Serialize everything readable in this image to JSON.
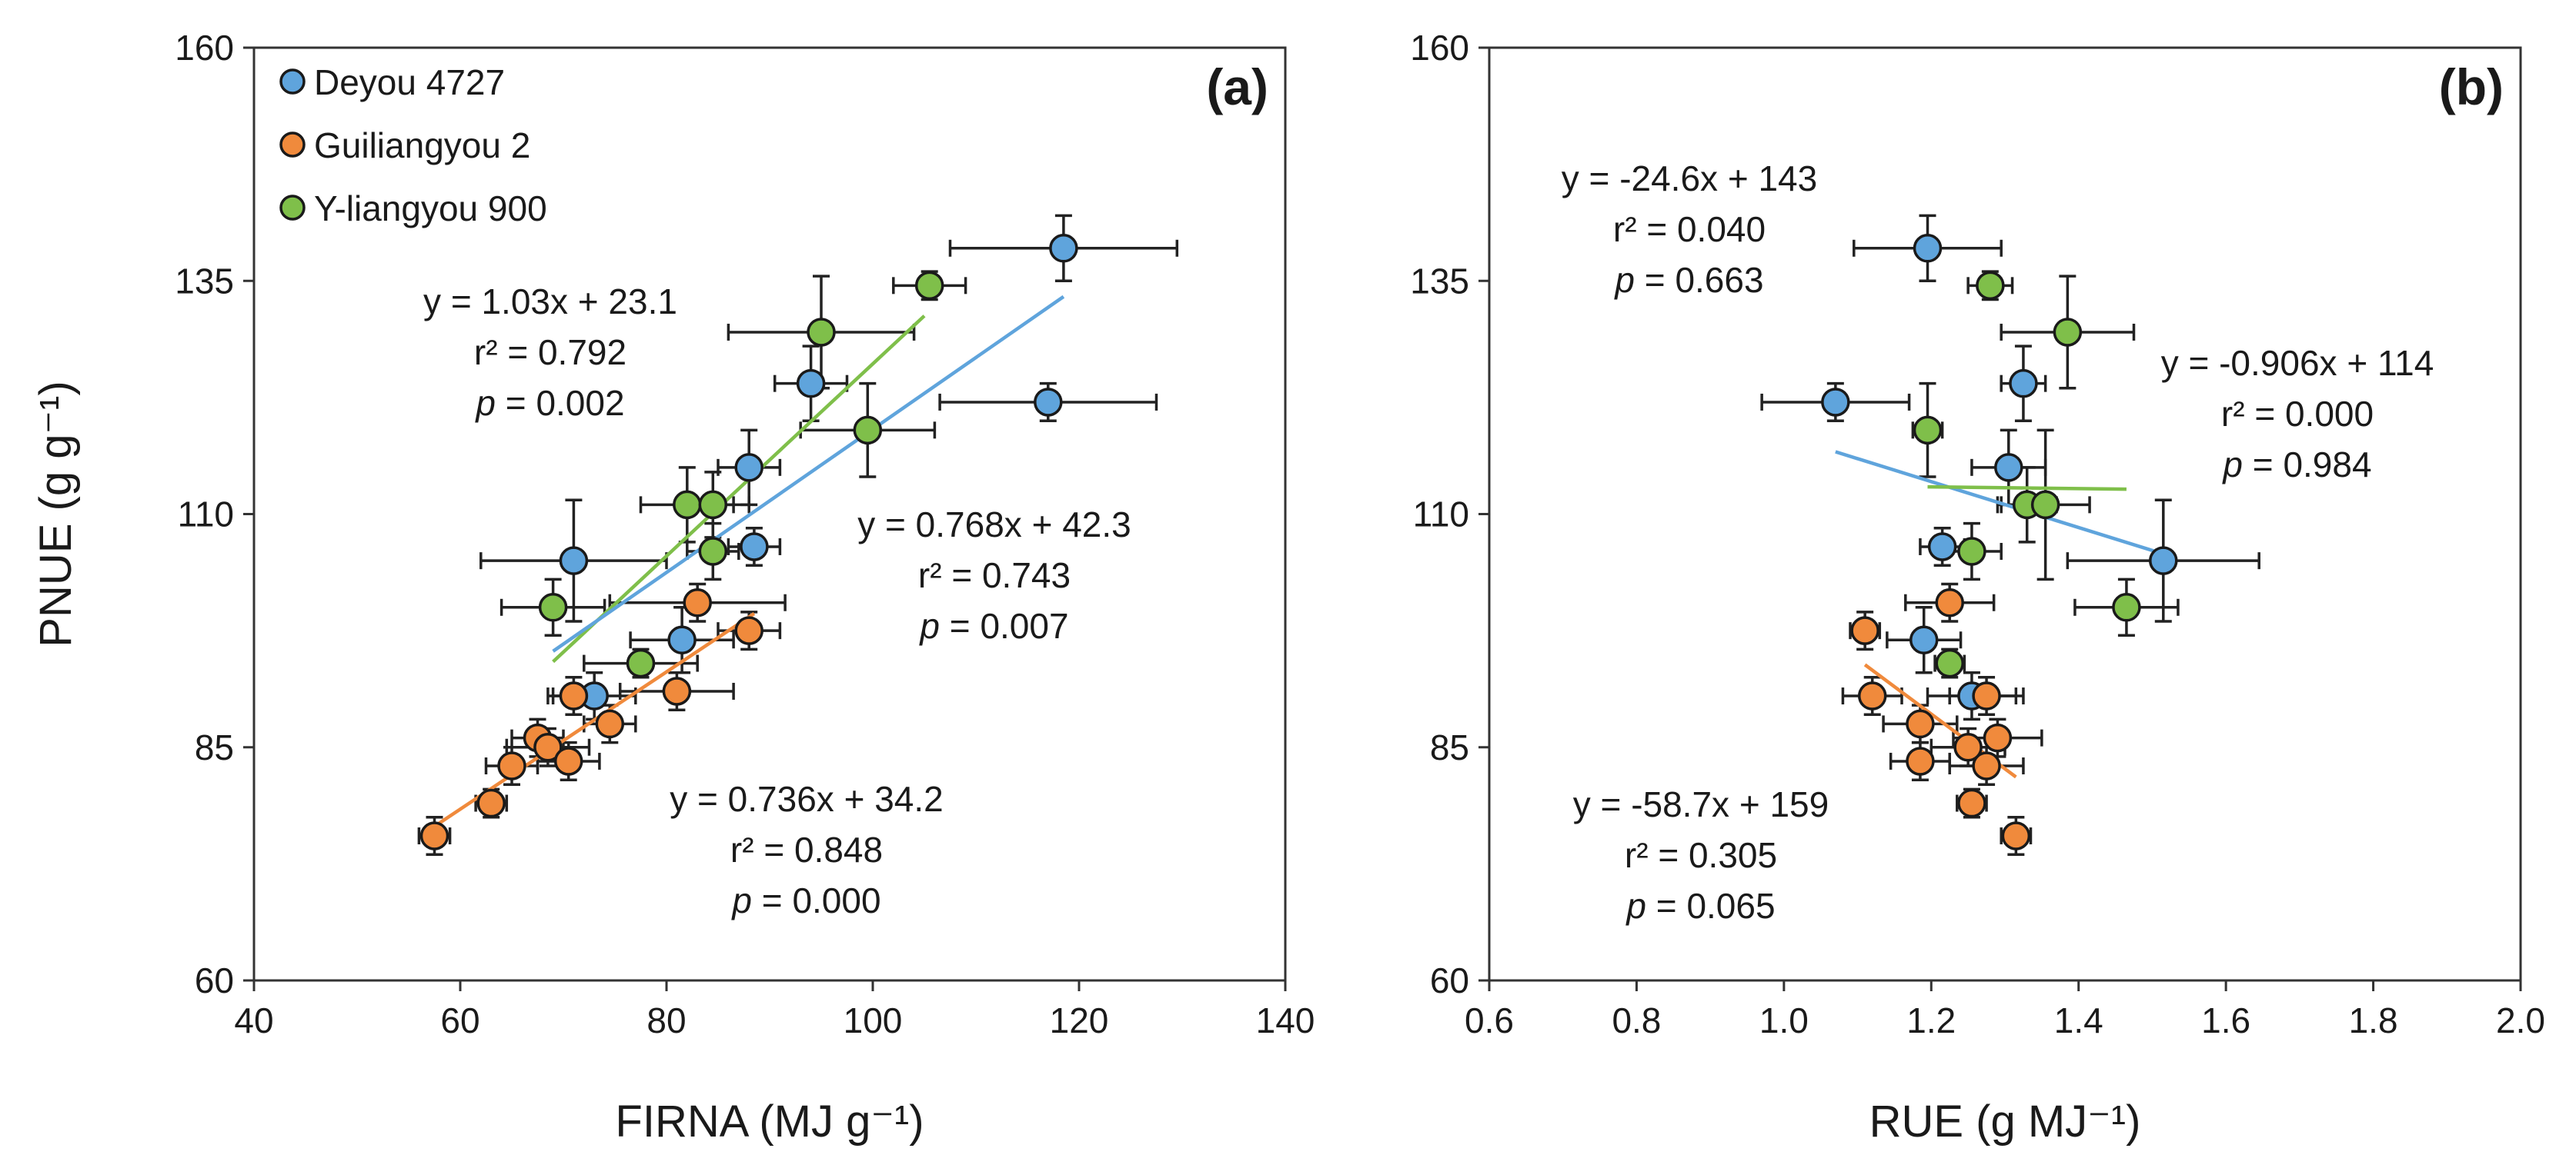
{
  "chart_data": [
    {
      "type": "scatter",
      "panel_label": "(a)",
      "xlabel": "FIRNA (MJ g⁻¹)",
      "ylabel": "PNUE (g g⁻¹)",
      "xlim": [
        40,
        140
      ],
      "ylim": [
        60,
        160
      ],
      "xticks": [
        "40",
        "60",
        "80",
        "100",
        "120",
        "140"
      ],
      "yticks": [
        "60",
        "85",
        "110",
        "135",
        "160"
      ],
      "legend": {
        "placement": "top-left",
        "entries": [
          "Deyou 4727",
          "Guiliangyou 2",
          "Y-liangyou 900"
        ]
      },
      "series": [
        {
          "name": "Deyou 4727",
          "color": "#5fa4dc",
          "points": [
            {
              "x": 118.5,
              "y": 138.5,
              "xerr": 11.0,
              "yerr": 3.5
            },
            {
              "x": 117.0,
              "y": 122.0,
              "xerr": 10.5,
              "yerr": 2.0
            },
            {
              "x": 94.0,
              "y": 124.0,
              "xerr": 3.5,
              "yerr": 4.0
            },
            {
              "x": 88.0,
              "y": 115.0,
              "xerr": 3.0,
              "yerr": 4.0
            },
            {
              "x": 71.0,
              "y": 105.0,
              "xerr": 9.0,
              "yerr": 6.5
            },
            {
              "x": 88.5,
              "y": 106.5,
              "xerr": 2.5,
              "yerr": 2.0
            },
            {
              "x": 81.5,
              "y": 96.5,
              "xerr": 5.0,
              "yerr": 3.5
            },
            {
              "x": 73.0,
              "y": 90.5,
              "xerr": 4.0,
              "yerr": 2.5
            }
          ],
          "fit": {
            "x": [
              69,
              118.5
            ]
          }
        },
        {
          "name": "Guiliangyou 2",
          "color": "#f08a3c",
          "points": [
            {
              "x": 57.5,
              "y": 75.5,
              "xerr": 1.5,
              "yerr": 2.0
            },
            {
              "x": 63.0,
              "y": 79.0,
              "xerr": 1.5,
              "yerr": 1.5
            },
            {
              "x": 65.0,
              "y": 83.0,
              "xerr": 2.5,
              "yerr": 2.0
            },
            {
              "x": 67.5,
              "y": 86.0,
              "xerr": 2.5,
              "yerr": 2.0
            },
            {
              "x": 68.5,
              "y": 85.0,
              "xerr": 4.0,
              "yerr": 2.0
            },
            {
              "x": 70.5,
              "y": 83.5,
              "xerr": 3.0,
              "yerr": 2.0
            },
            {
              "x": 71.0,
              "y": 90.5,
              "xerr": 2.5,
              "yerr": 2.0
            },
            {
              "x": 74.5,
              "y": 87.5,
              "xerr": 2.5,
              "yerr": 2.0
            },
            {
              "x": 81.0,
              "y": 91.0,
              "xerr": 5.5,
              "yerr": 2.0
            },
            {
              "x": 83.0,
              "y": 100.5,
              "xerr": 8.5,
              "yerr": 2.0
            },
            {
              "x": 88.0,
              "y": 97.5,
              "xerr": 3.0,
              "yerr": 2.0
            }
          ],
          "fit": {
            "x": [
              57.5,
              88.5
            ]
          }
        },
        {
          "name": "Y-liangyou 900",
          "color": "#7fbf4a",
          "points": [
            {
              "x": 105.5,
              "y": 134.5,
              "xerr": 3.5,
              "yerr": 1.5
            },
            {
              "x": 95.0,
              "y": 129.5,
              "xerr": 9.0,
              "yerr": 6.0
            },
            {
              "x": 99.5,
              "y": 119.0,
              "xerr": 6.5,
              "yerr": 5.0
            },
            {
              "x": 82.0,
              "y": 111.0,
              "xerr": 4.5,
              "yerr": 4.0
            },
            {
              "x": 84.5,
              "y": 111.0,
              "xerr": 3.5,
              "yerr": 3.5
            },
            {
              "x": 84.5,
              "y": 106.0,
              "xerr": 2.5,
              "yerr": 3.0
            },
            {
              "x": 69.0,
              "y": 100.0,
              "xerr": 5.0,
              "yerr": 3.0
            },
            {
              "x": 77.5,
              "y": 94.0,
              "xerr": 5.5,
              "yerr": 1.5
            }
          ],
          "fit": {
            "x": [
              69,
              105
            ]
          }
        }
      ],
      "annotations": [
        {
          "series": "Y-liangyou 900",
          "eq": "y = 1.03x + 23.1",
          "r2": "r² = 0.792",
          "p_label": "p",
          "p_value": " = 0.002",
          "slope": 1.03,
          "intercept": 23.1
        },
        {
          "series": "Deyou 4727",
          "eq": "y = 0.768x + 42.3",
          "r2": "r² = 0.743",
          "p_label": "p",
          "p_value": " = 0.007",
          "slope": 0.768,
          "intercept": 42.3
        },
        {
          "series": "Guiliangyou 2",
          "eq": "y = 0.736x + 34.2",
          "r2": "r² = 0.848",
          "p_label": "p",
          "p_value": " = 0.000",
          "slope": 0.736,
          "intercept": 34.2
        }
      ]
    },
    {
      "type": "scatter",
      "panel_label": "(b)",
      "xlabel": "RUE (g MJ⁻¹)",
      "ylabel": "",
      "xlim": [
        0.6,
        2.0
      ],
      "ylim": [
        60,
        160
      ],
      "xticks": [
        "0.6",
        "0.8",
        "1.0",
        "1.2",
        "1.4",
        "1.6",
        "1.8",
        "2.0"
      ],
      "yticks": [
        "60",
        "85",
        "110",
        "135",
        "160"
      ],
      "series": [
        {
          "name": "Deyou 4727",
          "color": "#5fa4dc",
          "points": [
            {
              "x": 1.195,
              "y": 138.5,
              "xerr": 0.1,
              "yerr": 3.5
            },
            {
              "x": 1.07,
              "y": 122.0,
              "xerr": 0.1,
              "yerr": 2.0
            },
            {
              "x": 1.325,
              "y": 124.0,
              "xerr": 0.03,
              "yerr": 4.0
            },
            {
              "x": 1.305,
              "y": 115.0,
              "xerr": 0.05,
              "yerr": 4.0
            },
            {
              "x": 1.515,
              "y": 105.0,
              "xerr": 0.13,
              "yerr": 6.5
            },
            {
              "x": 1.215,
              "y": 106.5,
              "xerr": 0.03,
              "yerr": 2.0
            },
            {
              "x": 1.19,
              "y": 96.5,
              "xerr": 0.05,
              "yerr": 3.5
            },
            {
              "x": 1.255,
              "y": 90.5,
              "xerr": 0.06,
              "yerr": 2.5
            }
          ],
          "fit": {
            "x": [
              1.07,
              1.515
            ]
          }
        },
        {
          "name": "Guiliangyou 2",
          "color": "#f08a3c",
          "points": [
            {
              "x": 1.315,
              "y": 75.5,
              "xerr": 0.02,
              "yerr": 2.0
            },
            {
              "x": 1.255,
              "y": 79.0,
              "xerr": 0.02,
              "yerr": 1.5
            },
            {
              "x": 1.275,
              "y": 83.0,
              "xerr": 0.05,
              "yerr": 2.0
            },
            {
              "x": 1.29,
              "y": 86.0,
              "xerr": 0.06,
              "yerr": 2.0
            },
            {
              "x": 1.25,
              "y": 85.0,
              "xerr": 0.05,
              "yerr": 2.0
            },
            {
              "x": 1.185,
              "y": 83.5,
              "xerr": 0.04,
              "yerr": 2.0
            },
            {
              "x": 1.12,
              "y": 90.5,
              "xerr": 0.04,
              "yerr": 2.0
            },
            {
              "x": 1.185,
              "y": 87.5,
              "xerr": 0.05,
              "yerr": 2.0
            },
            {
              "x": 1.275,
              "y": 90.5,
              "xerr": 0.05,
              "yerr": 2.0
            },
            {
              "x": 1.225,
              "y": 100.5,
              "xerr": 0.06,
              "yerr": 2.0
            },
            {
              "x": 1.11,
              "y": 97.5,
              "xerr": 0.02,
              "yerr": 2.0
            }
          ],
          "fit": {
            "x": [
              1.11,
              1.315
            ]
          }
        },
        {
          "name": "Y-liangyou 900",
          "color": "#7fbf4a",
          "points": [
            {
              "x": 1.28,
              "y": 134.5,
              "xerr": 0.03,
              "yerr": 1.5
            },
            {
              "x": 1.385,
              "y": 129.5,
              "xerr": 0.09,
              "yerr": 6.0
            },
            {
              "x": 1.195,
              "y": 119.0,
              "xerr": 0.02,
              "yerr": 5.0
            },
            {
              "x": 1.33,
              "y": 111.0,
              "xerr": 0.04,
              "yerr": 4.0
            },
            {
              "x": 1.355,
              "y": 111.0,
              "xerr": 0.06,
              "yerr": 8.0
            },
            {
              "x": 1.255,
              "y": 106.0,
              "xerr": 0.04,
              "yerr": 3.0
            },
            {
              "x": 1.465,
              "y": 100.0,
              "xerr": 0.07,
              "yerr": 3.0
            },
            {
              "x": 1.225,
              "y": 94.0,
              "xerr": 0.02,
              "yerr": 1.5
            }
          ],
          "fit": {
            "x": [
              1.195,
              1.465
            ]
          }
        }
      ],
      "annotations": [
        {
          "series": "Deyou 4727",
          "eq": "y = -24.6x + 143",
          "r2": "r² = 0.040",
          "p_label": "p",
          "p_value": " = 0.663",
          "slope": -24.6,
          "intercept": 143
        },
        {
          "series": "Y-liangyou 900",
          "eq": "y = -0.906x + 114",
          "r2": "r² = 0.000",
          "p_label": "p",
          "p_value": " = 0.984",
          "slope": -0.906,
          "intercept": 114
        },
        {
          "series": "Guiliangyou 2",
          "eq": "y = -58.7x + 159",
          "r2": "r² = 0.305",
          "p_label": "p",
          "p_value": " = 0.065",
          "slope": -58.7,
          "intercept": 159
        }
      ]
    }
  ]
}
